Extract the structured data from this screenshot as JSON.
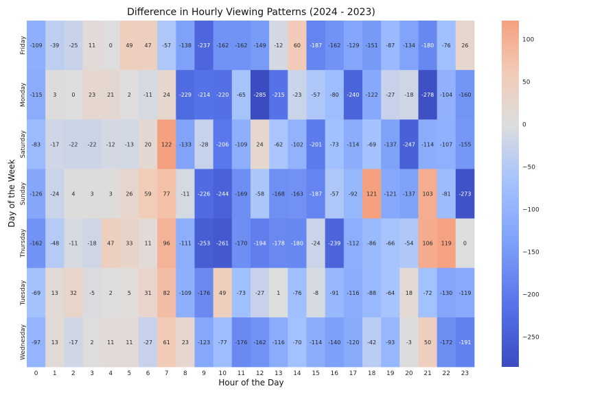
{
  "chart_data": {
    "type": "heatmap",
    "title": "Difference in Hourly Viewing Patterns (2024 - 2023)",
    "xlabel": "Hour of the Day",
    "ylabel": "Day of the Week",
    "x": [
      "0",
      "1",
      "2",
      "3",
      "4",
      "5",
      "6",
      "7",
      "8",
      "9",
      "10",
      "11",
      "12",
      "13",
      "14",
      "15",
      "16",
      "17",
      "18",
      "19",
      "20",
      "21",
      "22",
      "23"
    ],
    "y": [
      "Friday",
      "Monday",
      "Saturday",
      "Sunday",
      "Thursday",
      "Tuesday",
      "Wednesday"
    ],
    "values": [
      [
        -109,
        -39,
        -25,
        11,
        0,
        49,
        47,
        -57,
        -138,
        -237,
        -162,
        -162,
        -149,
        -12,
        60,
        -187,
        -162,
        -129,
        -151,
        -87,
        -134,
        -180,
        -76,
        26
      ],
      [
        -115,
        3,
        0,
        23,
        21,
        2,
        -11,
        24,
        -229,
        -214,
        -220,
        -65,
        -285,
        -215,
        -23,
        -57,
        -80,
        -240,
        -122,
        -27,
        -18,
        -278,
        -104,
        -160
      ],
      [
        -83,
        -17,
        -22,
        -22,
        -12,
        -13,
        20,
        122,
        -133,
        -28,
        -206,
        -109,
        24,
        -62,
        -102,
        -201,
        -73,
        -114,
        -69,
        -137,
        -247,
        -114,
        -107,
        -155
      ],
      [
        -126,
        -24,
        4,
        3,
        3,
        26,
        59,
        77,
        -11,
        -226,
        -244,
        -169,
        -58,
        -168,
        -163,
        -187,
        -57,
        -92,
        121,
        -121,
        -137,
        103,
        -81,
        -273
      ],
      [
        -162,
        -48,
        -11,
        -18,
        47,
        33,
        11,
        96,
        -111,
        -253,
        -261,
        -170,
        -194,
        -178,
        -180,
        -24,
        -239,
        -112,
        -86,
        -66,
        -54,
        106,
        119,
        0
      ],
      [
        -69,
        13,
        32,
        -5,
        2,
        5,
        31,
        82,
        -109,
        -176,
        49,
        -73,
        -27,
        1,
        -76,
        -8,
        -91,
        -116,
        -88,
        -64,
        18,
        -72,
        -130,
        -119
      ],
      [
        -97,
        13,
        -17,
        2,
        11,
        11,
        -27,
        61,
        23,
        -123,
        -77,
        -176,
        -162,
        -116,
        -70,
        -114,
        -140,
        -120,
        -42,
        -93,
        -3,
        50,
        -172,
        -191
      ]
    ],
    "colormap": "coolwarm",
    "vmin": -285,
    "vmax": 122,
    "colorbar_ticks": [
      100,
      50,
      0,
      -50,
      -100,
      -150,
      -200,
      -250
    ],
    "annotations": true
  }
}
